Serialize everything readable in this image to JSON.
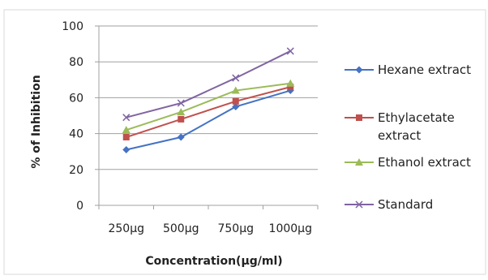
{
  "chart_data": {
    "type": "line",
    "title": "",
    "xlabel": "Concentration(μg/ml)",
    "ylabel": "% of Inhibition",
    "categories": [
      "250μg",
      "500μg",
      "750μg",
      "1000μg"
    ],
    "ylim": [
      0,
      100
    ],
    "yticks": [
      0,
      20,
      40,
      60,
      80,
      100
    ],
    "grid": "horizontal major",
    "legend_position": "right",
    "series": [
      {
        "name": "Hexane extract",
        "values": [
          31,
          38,
          55,
          64
        ],
        "color": "#4472C4",
        "marker": "diamond"
      },
      {
        "name": "Ethylacetate extract",
        "values": [
          38,
          48,
          58,
          66
        ],
        "color": "#C0504D",
        "marker": "square"
      },
      {
        "name": "Ethanol extract",
        "values": [
          42,
          52,
          64,
          68
        ],
        "color": "#9BBB59",
        "marker": "triangle"
      },
      {
        "name": "Standard",
        "values": [
          49,
          57,
          71,
          86
        ],
        "color": "#8064A2",
        "marker": "x"
      }
    ]
  }
}
